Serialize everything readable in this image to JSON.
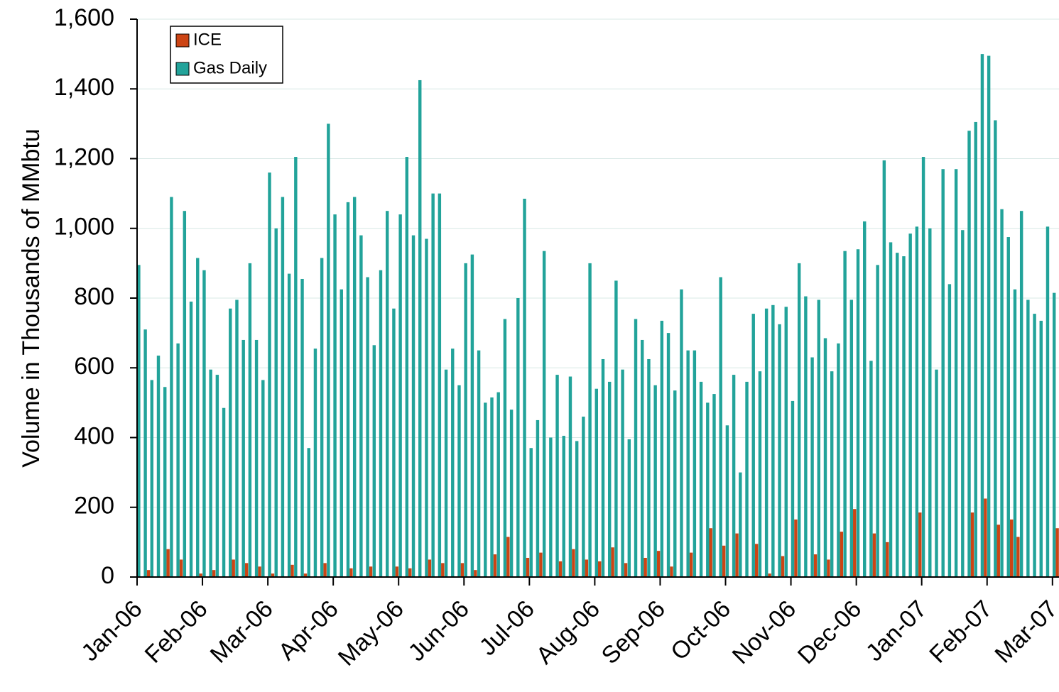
{
  "chart_data": {
    "type": "bar",
    "y_label": "Volume in Thousands of MMbtu",
    "categories": [
      "Jan-06",
      null,
      null,
      null,
      null,
      null,
      null,
      null,
      null,
      null,
      "Feb-06",
      null,
      null,
      null,
      null,
      null,
      null,
      null,
      null,
      null,
      "Mar-06",
      null,
      null,
      null,
      null,
      null,
      null,
      null,
      null,
      null,
      "Apr-06",
      null,
      null,
      null,
      null,
      null,
      null,
      null,
      null,
      null,
      "May-06",
      null,
      null,
      null,
      null,
      null,
      null,
      null,
      null,
      null,
      "Jun-06",
      null,
      null,
      null,
      null,
      null,
      null,
      null,
      null,
      null,
      "Jul-06",
      null,
      null,
      null,
      null,
      null,
      null,
      null,
      null,
      null,
      "Aug-06",
      null,
      null,
      null,
      null,
      null,
      null,
      null,
      null,
      null,
      "Sep-06",
      null,
      null,
      null,
      null,
      null,
      null,
      null,
      null,
      null,
      "Oct-06",
      null,
      null,
      null,
      null,
      null,
      null,
      null,
      null,
      null,
      "Nov-06",
      null,
      null,
      null,
      null,
      null,
      null,
      null,
      null,
      null,
      "Dec-06",
      null,
      null,
      null,
      null,
      null,
      null,
      null,
      null,
      null,
      "Jan-07",
      null,
      null,
      null,
      null,
      null,
      null,
      null,
      null,
      null,
      "Feb-07",
      null,
      null,
      null,
      null,
      null,
      null,
      null,
      null,
      null,
      "Mar-07"
    ],
    "series": [
      {
        "name": "ICE",
        "color": "#cc4414",
        "values": [
          0,
          20,
          0,
          0,
          80,
          0,
          50,
          0,
          0,
          10,
          0,
          20,
          0,
          0,
          50,
          0,
          40,
          0,
          30,
          0,
          10,
          0,
          0,
          35,
          0,
          10,
          0,
          0,
          40,
          0,
          0,
          0,
          25,
          0,
          0,
          30,
          0,
          0,
          0,
          30,
          0,
          25,
          0,
          0,
          50,
          0,
          40,
          0,
          0,
          40,
          0,
          20,
          0,
          0,
          65,
          0,
          115,
          0,
          0,
          55,
          0,
          70,
          0,
          0,
          45,
          0,
          80,
          0,
          50,
          0,
          45,
          0,
          85,
          0,
          40,
          0,
          0,
          55,
          0,
          75,
          0,
          30,
          0,
          0,
          70,
          0,
          0,
          140,
          0,
          90,
          0,
          125,
          0,
          0,
          95,
          0,
          10,
          0,
          60,
          0,
          165,
          0,
          0,
          65,
          0,
          50,
          0,
          130,
          0,
          195,
          0,
          0,
          125,
          0,
          100,
          0,
          0,
          0,
          0,
          185,
          0,
          0,
          0,
          0,
          0,
          0,
          0,
          185,
          0,
          225,
          0,
          150,
          0,
          165,
          115,
          0,
          0,
          0,
          0,
          0,
          140
        ]
      },
      {
        "name": "Gas Daily",
        "color": "#22a39a",
        "values": [
          895,
          710,
          565,
          635,
          545,
          1090,
          670,
          1050,
          790,
          915,
          880,
          595,
          580,
          485,
          770,
          795,
          680,
          900,
          680,
          565,
          1160,
          1000,
          1090,
          870,
          1205,
          855,
          370,
          655,
          915,
          1300,
          1040,
          825,
          1075,
          1090,
          980,
          860,
          665,
          880,
          1050,
          770,
          1040,
          1205,
          980,
          1425,
          970,
          1100,
          1100,
          595,
          655,
          550,
          900,
          925,
          650,
          500,
          515,
          530,
          740,
          480,
          800,
          1085,
          370,
          450,
          935,
          400,
          580,
          405,
          575,
          390,
          460,
          900,
          540,
          625,
          560,
          850,
          595,
          395,
          740,
          680,
          625,
          550,
          735,
          700,
          535,
          825,
          650,
          650,
          560,
          500,
          525,
          860,
          435,
          580,
          300,
          560,
          755,
          590,
          770,
          780,
          725,
          775,
          505,
          900,
          805,
          630,
          795,
          685,
          590,
          670,
          935,
          795,
          940,
          1020,
          620,
          895,
          1195,
          960,
          930,
          920,
          985,
          1005,
          1205,
          1000,
          595,
          1170,
          840,
          1170,
          995,
          1280,
          1305,
          1500,
          1495,
          1310,
          1055,
          975,
          825,
          1050,
          795,
          755,
          735,
          1005,
          815
        ]
      }
    ],
    "ylim": [
      0,
      1600
    ],
    "yticks": [
      0,
      200,
      400,
      600,
      800,
      {
        "value": 1000,
        "label": "1,000"
      },
      {
        "value": 1200,
        "label": "1,200"
      },
      {
        "value": 1400,
        "label": "1,400"
      },
      {
        "value": 1600,
        "label": "1,600"
      }
    ],
    "grid": true,
    "legend": "top-left"
  }
}
